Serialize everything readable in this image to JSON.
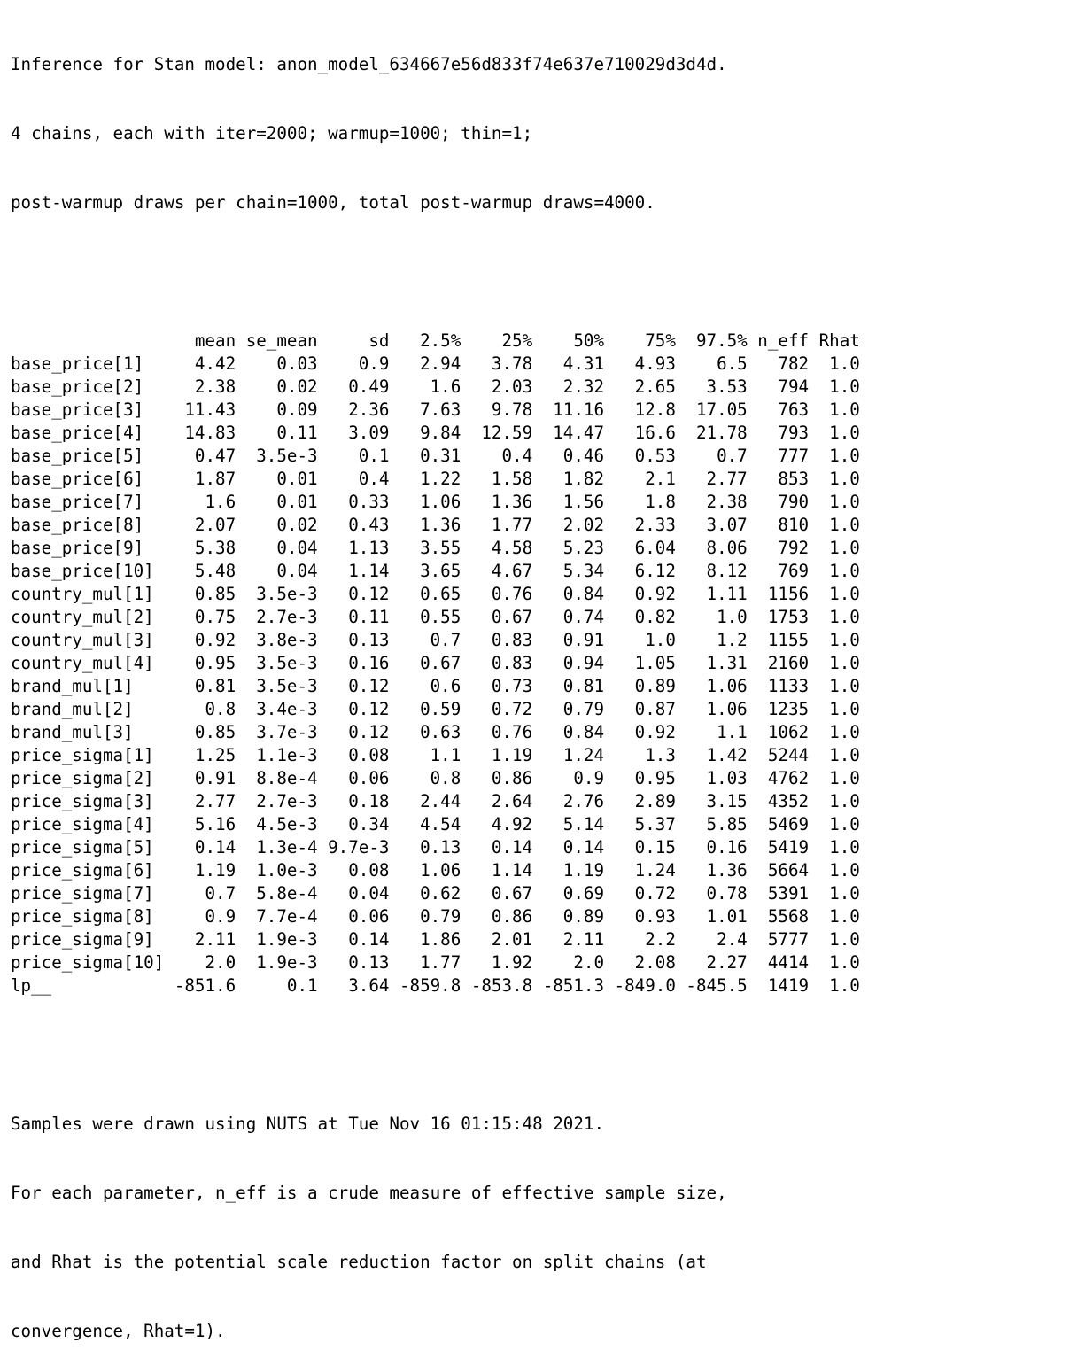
{
  "header": {
    "line1": "Inference for Stan model: anon_model_634667e56d833f74e637e710029d3d4d.",
    "line2": "4 chains, each with iter=2000; warmup=1000; thin=1;",
    "line3": "post-warmup draws per chain=1000, total post-warmup draws=4000."
  },
  "table": {
    "columns": [
      "mean",
      "se_mean",
      "sd",
      "2.5%",
      "25%",
      "50%",
      "75%",
      "97.5%",
      "n_eff",
      "Rhat"
    ],
    "rows": [
      {
        "param": "base_price[1]",
        "values": [
          "4.42",
          "0.03",
          "0.9",
          "2.94",
          "3.78",
          "4.31",
          "4.93",
          "6.5",
          "782",
          "1.0"
        ]
      },
      {
        "param": "base_price[2]",
        "values": [
          "2.38",
          "0.02",
          "0.49",
          "1.6",
          "2.03",
          "2.32",
          "2.65",
          "3.53",
          "794",
          "1.0"
        ]
      },
      {
        "param": "base_price[3]",
        "values": [
          "11.43",
          "0.09",
          "2.36",
          "7.63",
          "9.78",
          "11.16",
          "12.8",
          "17.05",
          "763",
          "1.0"
        ]
      },
      {
        "param": "base_price[4]",
        "values": [
          "14.83",
          "0.11",
          "3.09",
          "9.84",
          "12.59",
          "14.47",
          "16.6",
          "21.78",
          "793",
          "1.0"
        ]
      },
      {
        "param": "base_price[5]",
        "values": [
          "0.47",
          "3.5e-3",
          "0.1",
          "0.31",
          "0.4",
          "0.46",
          "0.53",
          "0.7",
          "777",
          "1.0"
        ]
      },
      {
        "param": "base_price[6]",
        "values": [
          "1.87",
          "0.01",
          "0.4",
          "1.22",
          "1.58",
          "1.82",
          "2.1",
          "2.77",
          "853",
          "1.0"
        ]
      },
      {
        "param": "base_price[7]",
        "values": [
          "1.6",
          "0.01",
          "0.33",
          "1.06",
          "1.36",
          "1.56",
          "1.8",
          "2.38",
          "790",
          "1.0"
        ]
      },
      {
        "param": "base_price[8]",
        "values": [
          "2.07",
          "0.02",
          "0.43",
          "1.36",
          "1.77",
          "2.02",
          "2.33",
          "3.07",
          "810",
          "1.0"
        ]
      },
      {
        "param": "base_price[9]",
        "values": [
          "5.38",
          "0.04",
          "1.13",
          "3.55",
          "4.58",
          "5.23",
          "6.04",
          "8.06",
          "792",
          "1.0"
        ]
      },
      {
        "param": "base_price[10]",
        "values": [
          "5.48",
          "0.04",
          "1.14",
          "3.65",
          "4.67",
          "5.34",
          "6.12",
          "8.12",
          "769",
          "1.0"
        ]
      },
      {
        "param": "country_mul[1]",
        "values": [
          "0.85",
          "3.5e-3",
          "0.12",
          "0.65",
          "0.76",
          "0.84",
          "0.92",
          "1.11",
          "1156",
          "1.0"
        ]
      },
      {
        "param": "country_mul[2]",
        "values": [
          "0.75",
          "2.7e-3",
          "0.11",
          "0.55",
          "0.67",
          "0.74",
          "0.82",
          "1.0",
          "1753",
          "1.0"
        ]
      },
      {
        "param": "country_mul[3]",
        "values": [
          "0.92",
          "3.8e-3",
          "0.13",
          "0.7",
          "0.83",
          "0.91",
          "1.0",
          "1.2",
          "1155",
          "1.0"
        ]
      },
      {
        "param": "country_mul[4]",
        "values": [
          "0.95",
          "3.5e-3",
          "0.16",
          "0.67",
          "0.83",
          "0.94",
          "1.05",
          "1.31",
          "2160",
          "1.0"
        ]
      },
      {
        "param": "brand_mul[1]",
        "values": [
          "0.81",
          "3.5e-3",
          "0.12",
          "0.6",
          "0.73",
          "0.81",
          "0.89",
          "1.06",
          "1133",
          "1.0"
        ]
      },
      {
        "param": "brand_mul[2]",
        "values": [
          "0.8",
          "3.4e-3",
          "0.12",
          "0.59",
          "0.72",
          "0.79",
          "0.87",
          "1.06",
          "1235",
          "1.0"
        ]
      },
      {
        "param": "brand_mul[3]",
        "values": [
          "0.85",
          "3.7e-3",
          "0.12",
          "0.63",
          "0.76",
          "0.84",
          "0.92",
          "1.1",
          "1062",
          "1.0"
        ]
      },
      {
        "param": "price_sigma[1]",
        "values": [
          "1.25",
          "1.1e-3",
          "0.08",
          "1.1",
          "1.19",
          "1.24",
          "1.3",
          "1.42",
          "5244",
          "1.0"
        ]
      },
      {
        "param": "price_sigma[2]",
        "values": [
          "0.91",
          "8.8e-4",
          "0.06",
          "0.8",
          "0.86",
          "0.9",
          "0.95",
          "1.03",
          "4762",
          "1.0"
        ]
      },
      {
        "param": "price_sigma[3]",
        "values": [
          "2.77",
          "2.7e-3",
          "0.18",
          "2.44",
          "2.64",
          "2.76",
          "2.89",
          "3.15",
          "4352",
          "1.0"
        ]
      },
      {
        "param": "price_sigma[4]",
        "values": [
          "5.16",
          "4.5e-3",
          "0.34",
          "4.54",
          "4.92",
          "5.14",
          "5.37",
          "5.85",
          "5469",
          "1.0"
        ]
      },
      {
        "param": "price_sigma[5]",
        "values": [
          "0.14",
          "1.3e-4",
          "9.7e-3",
          "0.13",
          "0.14",
          "0.14",
          "0.15",
          "0.16",
          "5419",
          "1.0"
        ]
      },
      {
        "param": "price_sigma[6]",
        "values": [
          "1.19",
          "1.0e-3",
          "0.08",
          "1.06",
          "1.14",
          "1.19",
          "1.24",
          "1.36",
          "5664",
          "1.0"
        ]
      },
      {
        "param": "price_sigma[7]",
        "values": [
          "0.7",
          "5.8e-4",
          "0.04",
          "0.62",
          "0.67",
          "0.69",
          "0.72",
          "0.78",
          "5391",
          "1.0"
        ]
      },
      {
        "param": "price_sigma[8]",
        "values": [
          "0.9",
          "7.7e-4",
          "0.06",
          "0.79",
          "0.86",
          "0.89",
          "0.93",
          "1.01",
          "5568",
          "1.0"
        ]
      },
      {
        "param": "price_sigma[9]",
        "values": [
          "2.11",
          "1.9e-3",
          "0.14",
          "1.86",
          "2.01",
          "2.11",
          "2.2",
          "2.4",
          "5777",
          "1.0"
        ]
      },
      {
        "param": "price_sigma[10]",
        "values": [
          "2.0",
          "1.9e-3",
          "0.13",
          "1.77",
          "1.92",
          "2.0",
          "2.08",
          "2.27",
          "4414",
          "1.0"
        ]
      },
      {
        "param": "lp__",
        "values": [
          "-851.6",
          "0.1",
          "3.64",
          "-859.8",
          "-853.8",
          "-851.3",
          "-849.0",
          "-845.5",
          "1419",
          "1.0"
        ]
      }
    ]
  },
  "footer": {
    "line1": "Samples were drawn using NUTS at Tue Nov 16 01:15:48 2021.",
    "line2": "For each parameter, n_eff is a crude measure of effective sample size,",
    "line3": "and Rhat is the potential scale reduction factor on split chains (at",
    "line4": "convergence, Rhat=1)."
  }
}
